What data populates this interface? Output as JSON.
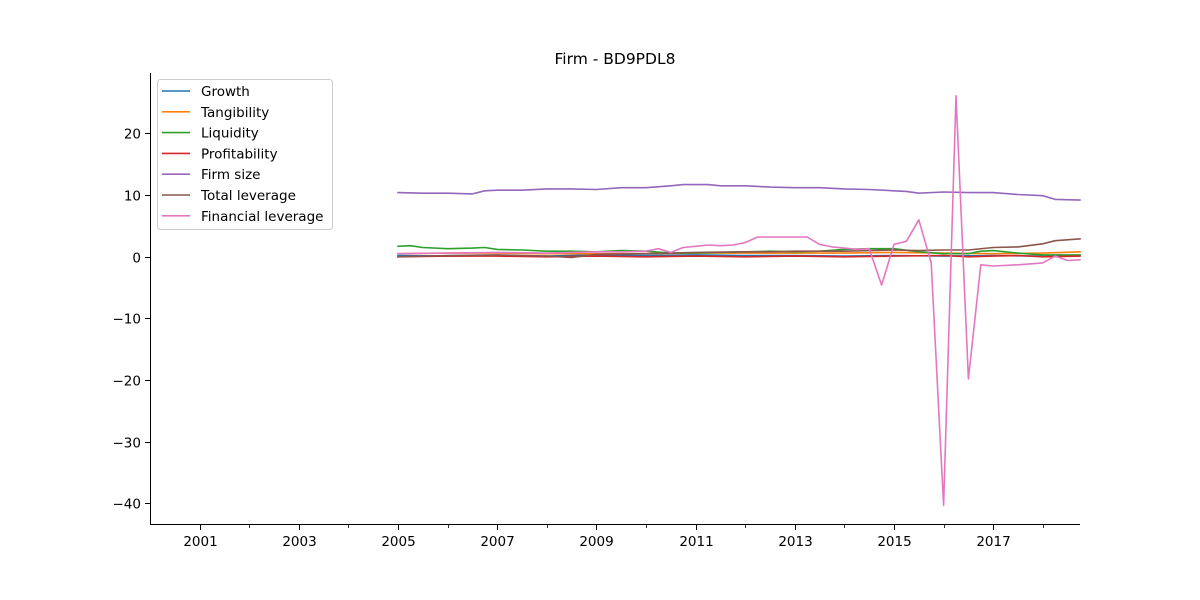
{
  "chart_data": {
    "type": "line",
    "title": "Firm - BD9PDL8",
    "xlabel": "",
    "ylabel": "",
    "xlim": [
      2000.0,
      2018.75
    ],
    "ylim": [
      -43.5,
      29.8
    ],
    "x_ticks": [
      2001,
      2003,
      2005,
      2007,
      2009,
      2011,
      2013,
      2015,
      2017
    ],
    "x_tick_labels": [
      "2001",
      "2003",
      "2005",
      "2007",
      "2009",
      "2011",
      "2013",
      "2015",
      "2017"
    ],
    "x_minor_ticks": [
      2002,
      2004,
      2006,
      2008,
      2010,
      2012,
      2014,
      2016,
      2018
    ],
    "y_ticks": [
      -40,
      -30,
      -20,
      -10,
      0,
      10,
      20
    ],
    "y_tick_labels": [
      "−40",
      "−30",
      "−20",
      "−10",
      "0",
      "10",
      "20"
    ],
    "grid": false,
    "legend_position": "upper-left",
    "series": [
      {
        "name": "Growth",
        "color": "#1f77b4",
        "x": [
          2005.0,
          2006.0,
          2007.0,
          2008.0,
          2009.0,
          2010.0,
          2011.0,
          2012.0,
          2013.0,
          2014.0,
          2015.0,
          2016.0,
          2017.0,
          2018.0,
          2018.75
        ],
        "y": [
          0.2,
          0.1,
          0.2,
          0.1,
          0.3,
          0.2,
          0.3,
          0.2,
          0.2,
          0.1,
          0.2,
          0.1,
          0.2,
          0.1,
          0.2
        ]
      },
      {
        "name": "Tangibility",
        "color": "#ff7f0e",
        "x": [
          2005.0,
          2006.0,
          2007.0,
          2008.0,
          2009.0,
          2010.0,
          2011.0,
          2012.0,
          2013.0,
          2014.0,
          2015.0,
          2016.0,
          2017.0,
          2018.0,
          2018.75
        ],
        "y": [
          0.5,
          0.6,
          0.6,
          0.5,
          0.5,
          0.5,
          0.6,
          0.6,
          0.6,
          0.6,
          0.7,
          0.6,
          0.5,
          0.6,
          0.8
        ]
      },
      {
        "name": "Liquidity",
        "color": "#2ca02c",
        "x": [
          2005.0,
          2005.25,
          2005.5,
          2006.0,
          2006.5,
          2006.75,
          2007.0,
          2007.5,
          2008.0,
          2008.5,
          2009.0,
          2009.5,
          2010.0,
          2010.5,
          2011.0,
          2011.5,
          2012.0,
          2012.5,
          2013.0,
          2013.5,
          2014.0,
          2014.5,
          2015.0,
          2015.5,
          2016.0,
          2016.5,
          2016.75,
          2017.0,
          2017.5,
          2018.0,
          2018.5,
          2018.75
        ],
        "y": [
          1.7,
          1.8,
          1.5,
          1.3,
          1.4,
          1.5,
          1.2,
          1.1,
          0.9,
          0.9,
          0.8,
          1.0,
          0.9,
          0.6,
          0.6,
          0.7,
          0.8,
          0.9,
          0.8,
          0.9,
          1.2,
          1.3,
          1.3,
          0.8,
          0.5,
          0.5,
          0.9,
          1.0,
          0.6,
          0.3,
          0.3,
          0.3
        ]
      },
      {
        "name": "Profitability",
        "color": "#d62728",
        "x": [
          2005.0,
          2006.0,
          2007.0,
          2008.0,
          2009.0,
          2010.0,
          2011.0,
          2012.0,
          2013.0,
          2014.0,
          2015.0,
          2016.0,
          2016.5,
          2017.0,
          2017.5,
          2018.0,
          2018.75
        ],
        "y": [
          0.0,
          0.1,
          0.1,
          0.0,
          0.1,
          0.0,
          0.1,
          0.0,
          0.1,
          0.0,
          0.1,
          0.2,
          0.0,
          0.1,
          0.2,
          0.0,
          0.1
        ]
      },
      {
        "name": "Firm size",
        "color": "#9467bd",
        "x": [
          2005.0,
          2005.5,
          2006.0,
          2006.5,
          2006.75,
          2007.0,
          2007.5,
          2008.0,
          2008.5,
          2009.0,
          2009.5,
          2010.0,
          2010.5,
          2010.75,
          2011.0,
          2011.25,
          2011.5,
          2012.0,
          2012.5,
          2013.0,
          2013.5,
          2014.0,
          2014.5,
          2015.0,
          2015.25,
          2015.5,
          2016.0,
          2016.5,
          2017.0,
          2017.5,
          2018.0,
          2018.25,
          2018.75
        ],
        "y": [
          10.4,
          10.3,
          10.3,
          10.2,
          10.7,
          10.8,
          10.8,
          11.0,
          11.0,
          10.9,
          11.2,
          11.2,
          11.5,
          11.7,
          11.7,
          11.7,
          11.5,
          11.5,
          11.3,
          11.2,
          11.2,
          11.0,
          10.9,
          10.7,
          10.6,
          10.3,
          10.5,
          10.4,
          10.4,
          10.1,
          9.9,
          9.3,
          9.2
        ]
      },
      {
        "name": "Total leverage",
        "color": "#8c564b",
        "x": [
          2005.0,
          2006.0,
          2007.0,
          2008.0,
          2008.5,
          2009.0,
          2010.0,
          2011.0,
          2012.0,
          2012.5,
          2013.0,
          2014.0,
          2014.5,
          2015.0,
          2015.5,
          2016.0,
          2016.5,
          2017.0,
          2017.5,
          2018.0,
          2018.25,
          2018.75
        ],
        "y": [
          0.0,
          0.2,
          0.3,
          0.1,
          -0.1,
          0.4,
          0.5,
          0.7,
          0.8,
          0.8,
          0.9,
          0.9,
          1.0,
          1.1,
          1.0,
          1.1,
          1.1,
          1.5,
          1.6,
          2.1,
          2.6,
          2.9
        ]
      },
      {
        "name": "Financial leverage",
        "color": "#e377c2",
        "x": [
          2005.0,
          2006.0,
          2007.0,
          2008.0,
          2008.5,
          2009.0,
          2009.5,
          2010.0,
          2010.25,
          2010.5,
          2010.75,
          2011.0,
          2011.25,
          2011.5,
          2011.75,
          2012.0,
          2012.25,
          2012.5,
          2012.75,
          2013.0,
          2013.25,
          2013.5,
          2013.75,
          2014.0,
          2014.25,
          2014.5,
          2014.75,
          2015.0,
          2015.25,
          2015.5,
          2015.75,
          2016.0,
          2016.25,
          2016.5,
          2016.75,
          2017.0,
          2017.5,
          2018.0,
          2018.25,
          2018.5,
          2018.75
        ],
        "y": [
          0.5,
          0.6,
          0.7,
          0.6,
          0.7,
          0.8,
          0.8,
          0.9,
          1.3,
          0.7,
          1.5,
          1.7,
          1.9,
          1.8,
          1.9,
          2.3,
          3.2,
          3.2,
          3.2,
          3.2,
          3.2,
          2.0,
          1.6,
          1.4,
          1.2,
          1.3,
          -4.6,
          2.0,
          2.5,
          6.0,
          -1.0,
          -40.3,
          26.1,
          -19.8,
          -1.3,
          -1.5,
          -1.3,
          -1.0,
          0.1,
          -0.6,
          -0.5
        ]
      }
    ]
  }
}
